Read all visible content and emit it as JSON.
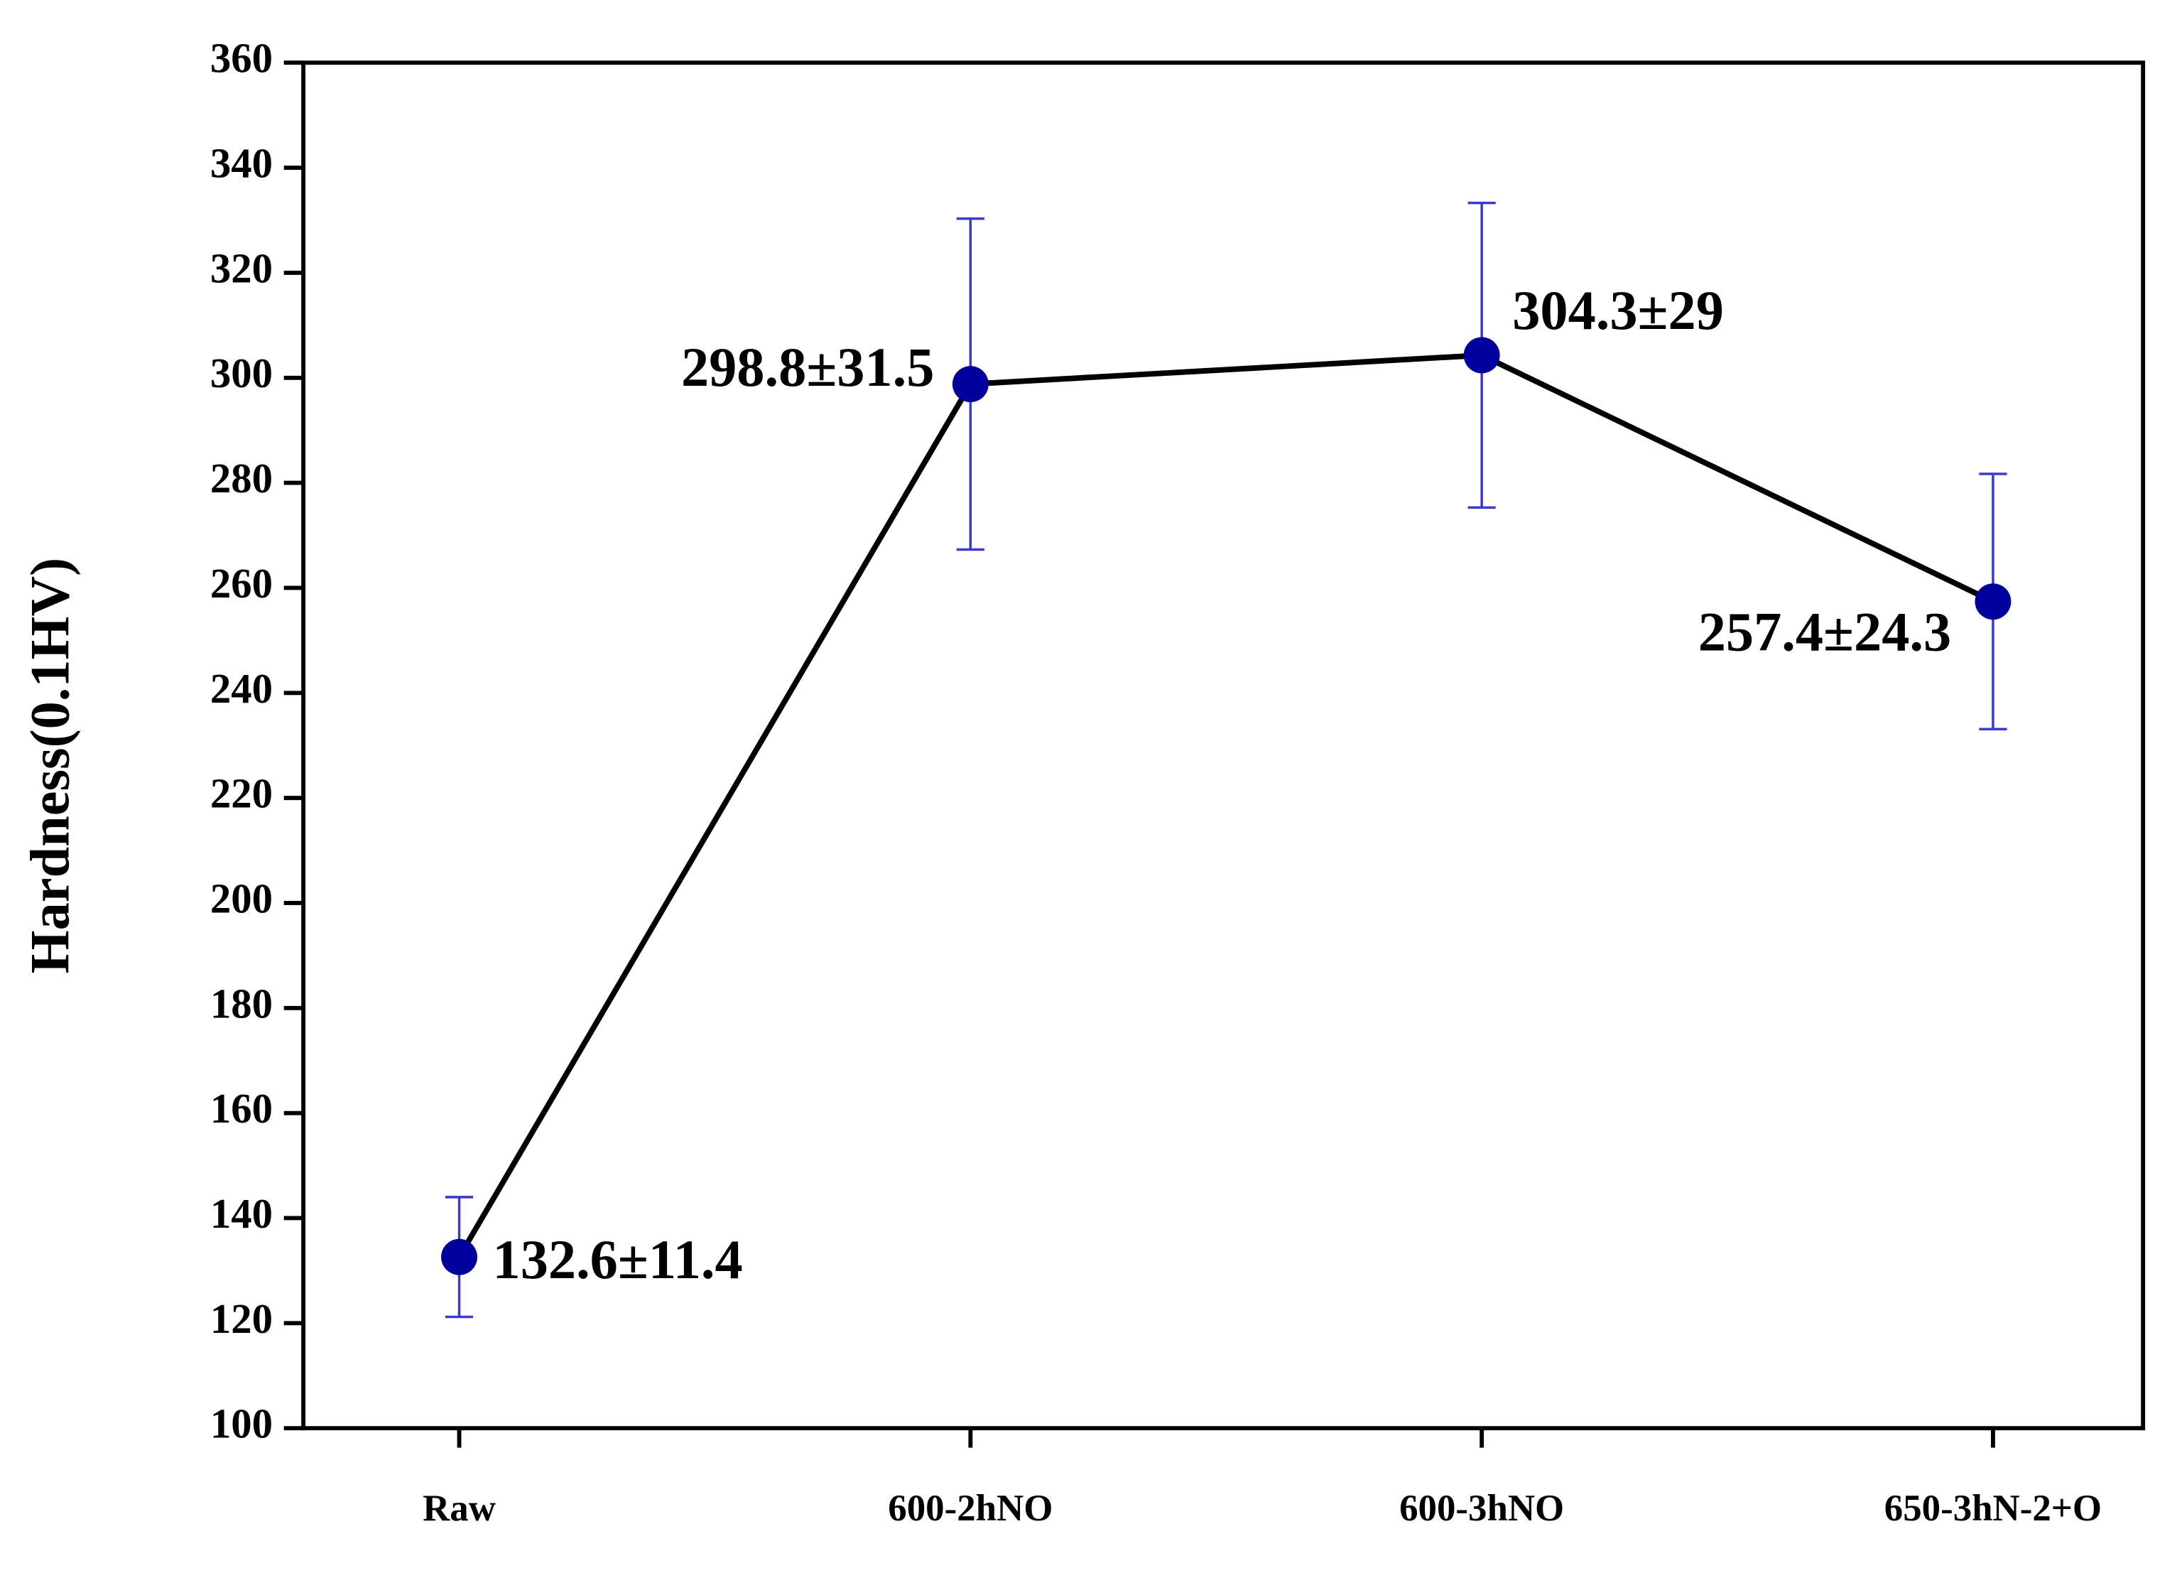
{
  "chart_data": {
    "type": "line",
    "y_label": "Hardness(0.1HV)",
    "categories": [
      "Raw",
      "600-2hNO",
      "600-3hNO",
      "650-3hN-2+O"
    ],
    "values": [
      132.6,
      298.8,
      304.3,
      257.4
    ],
    "errors": [
      11.4,
      31.5,
      29,
      24.3
    ],
    "value_labels": [
      "132.6±11.4",
      "298.8±31.5",
      "304.3±29",
      "257.4±24.3"
    ],
    "color": "#00009c",
    "line_color": "#000000",
    "error_color": "#3a3ad0",
    "ylim": [
      100,
      360
    ],
    "yticks": [
      100,
      120,
      140,
      160,
      180,
      200,
      220,
      240,
      260,
      280,
      300,
      320,
      340,
      360
    ]
  }
}
